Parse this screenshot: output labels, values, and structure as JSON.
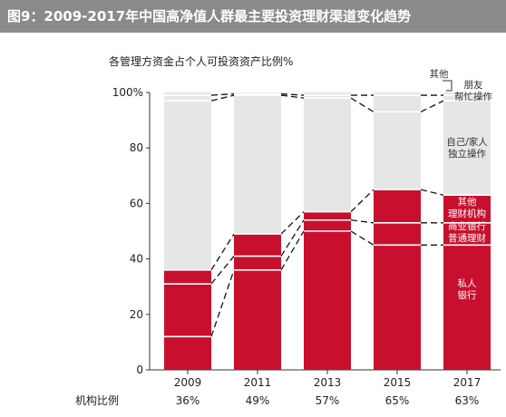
{
  "header": {
    "title": "图9：2009-2017年中国高净值人群最主要投资理财渠道变化趋势"
  },
  "chart_data": {
    "type": "bar",
    "stacked": true,
    "subtitle": "各管理方资金占个人可投资资产比例%",
    "categories": [
      "2009",
      "2011",
      "2013",
      "2015",
      "2017"
    ],
    "ylim": [
      0,
      100
    ],
    "yticks": [
      "0",
      "20",
      "40",
      "60",
      "80",
      "100%"
    ],
    "series": [
      {
        "name": "私人银行",
        "color": "#c8102e",
        "values": [
          12,
          36,
          50,
          45,
          45
        ]
      },
      {
        "name": "商业银行普通理财",
        "color": "#c8102e",
        "values": [
          19,
          5,
          4,
          8,
          8
        ]
      },
      {
        "name": "其他理财机构",
        "color": "#c8102e",
        "values": [
          5,
          8,
          3,
          12,
          10
        ]
      },
      {
        "name": "自己/家人独立操作",
        "color": "#e6e6e6",
        "values": [
          61,
          50,
          41,
          28,
          34
        ]
      },
      {
        "name": "朋友帮忙操作",
        "color": "#e6e6e6",
        "values": [
          2,
          0.5,
          1,
          6,
          2
        ]
      },
      {
        "name": "其他",
        "color": "#e6e6e6",
        "values": [
          1,
          0.5,
          1,
          1,
          1
        ]
      }
    ],
    "labels": {
      "other": "其他",
      "friend": [
        "朋友",
        "帮忙操作"
      ],
      "self": [
        "自己/家人",
        "独立操作"
      ],
      "other_inst": [
        "其他",
        "理财机构"
      ],
      "commercial": [
        "商业银行",
        "普通理财"
      ],
      "private": [
        "私人",
        "银行"
      ]
    },
    "footer": {
      "label": "机构比例",
      "values": [
        "36%",
        "49%",
        "57%",
        "65%",
        "63%"
      ]
    }
  }
}
